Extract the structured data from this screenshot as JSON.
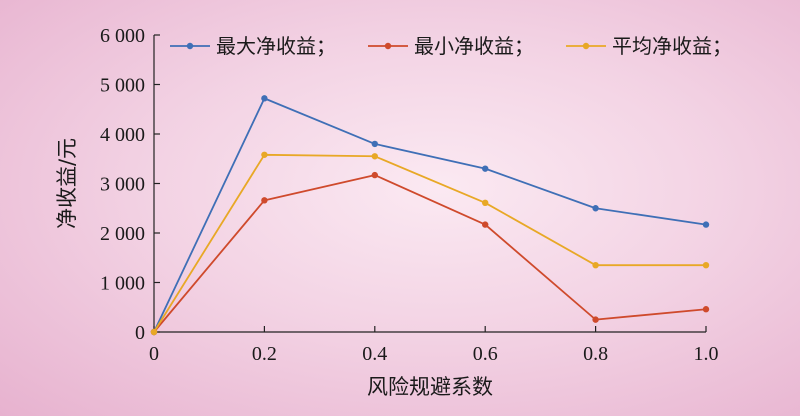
{
  "chart_data": {
    "type": "line",
    "xlabel": "风险规避系数",
    "ylabel": "净收益/元",
    "x": [
      0,
      0.2,
      0.4,
      0.6,
      0.8,
      1.0
    ],
    "x_tick_labels": [
      "0",
      "0.2",
      "0.4",
      "0.6",
      "0.8",
      "1.0"
    ],
    "y_tick_labels": [
      "0",
      "1 000",
      "2 000",
      "3 000",
      "4 000",
      "5 000",
      "6 000"
    ],
    "y_ticks": [
      0,
      1000,
      2000,
      3000,
      4000,
      5000,
      6000
    ],
    "xlim": [
      0,
      1.0
    ],
    "ylim": [
      0,
      6000
    ],
    "grid": false,
    "legend_position": "top",
    "series": [
      {
        "name": "最大净收益；",
        "color": "#3f6fb6",
        "values": [
          0,
          4720,
          3800,
          3300,
          2500,
          2170
        ]
      },
      {
        "name": "最小净收益；",
        "color": "#cf4a2c",
        "values": [
          0,
          2660,
          3170,
          2170,
          250,
          460
        ]
      },
      {
        "name": "平均净收益；",
        "color": "#e8a826",
        "values": [
          0,
          3580,
          3550,
          2610,
          1350,
          1350
        ]
      }
    ]
  }
}
